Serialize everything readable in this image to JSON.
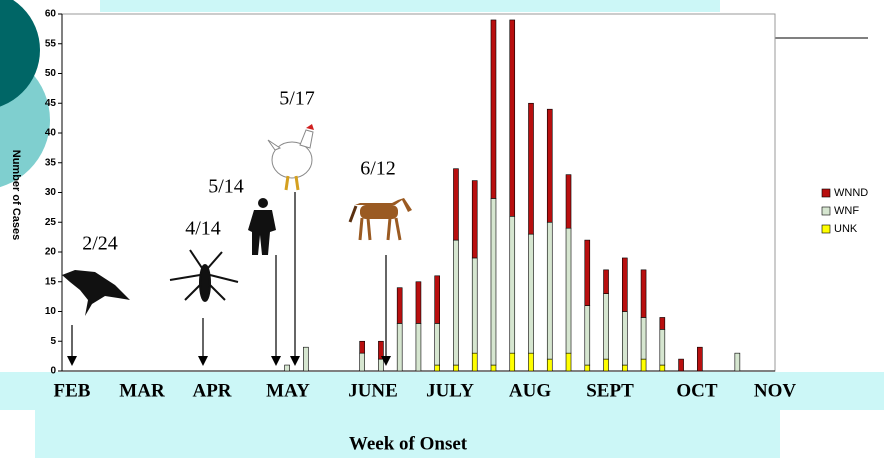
{
  "chart_data": {
    "type": "bar",
    "stacked": true,
    "y_label": "Number of Cases",
    "x_label": "Week of Onset",
    "categories": [
      null,
      null,
      null,
      null,
      null,
      null,
      null,
      null,
      null,
      null,
      null,
      null,
      null,
      null,
      null,
      null,
      null,
      null,
      null,
      null,
      null,
      null,
      null,
      null,
      null,
      null,
      null,
      null,
      null,
      null,
      null,
      null,
      null,
      null,
      null,
      null,
      null
    ],
    "months": [
      "FEB",
      "MAR",
      "APR",
      "MAY",
      "JUNE",
      "JULY",
      "AUG",
      "SEPT",
      "OCT",
      "NOV"
    ],
    "series": [
      {
        "name": "WNND",
        "color": "#b80f0f",
        "values": [
          null,
          null,
          null,
          null,
          null,
          null,
          null,
          null,
          null,
          null,
          null,
          null,
          0,
          0,
          null,
          null,
          2,
          3,
          6,
          7,
          8,
          12,
          13,
          30,
          33,
          22,
          19,
          9,
          11,
          4,
          9,
          8,
          2,
          2,
          4,
          null,
          0
        ]
      },
      {
        "name": "WNF",
        "color": "#d6e6d0",
        "values": [
          null,
          null,
          null,
          null,
          null,
          null,
          null,
          null,
          null,
          null,
          null,
          null,
          1,
          4,
          null,
          null,
          3,
          2,
          8,
          8,
          7,
          21,
          16,
          28,
          23,
          20,
          23,
          21,
          10,
          11,
          9,
          7,
          6,
          0,
          0,
          null,
          3
        ]
      },
      {
        "name": "UNK",
        "color": "#ffff00",
        "values": [
          null,
          null,
          null,
          null,
          null,
          null,
          null,
          null,
          null,
          null,
          null,
          null,
          0,
          0,
          null,
          null,
          0,
          0,
          0,
          0,
          1,
          1,
          3,
          1,
          3,
          3,
          2,
          3,
          1,
          2,
          1,
          2,
          1,
          0,
          0,
          null,
          0
        ]
      }
    ],
    "annotations": [
      "2/24",
      "4/14",
      "5/14",
      "5/17",
      "6/12"
    ],
    "ylim": [
      0,
      60
    ],
    "yticks": [
      0,
      5,
      10,
      15,
      20,
      25,
      30,
      35,
      40,
      45,
      50,
      55,
      60
    ],
    "grid": false,
    "legend": "right"
  }
}
